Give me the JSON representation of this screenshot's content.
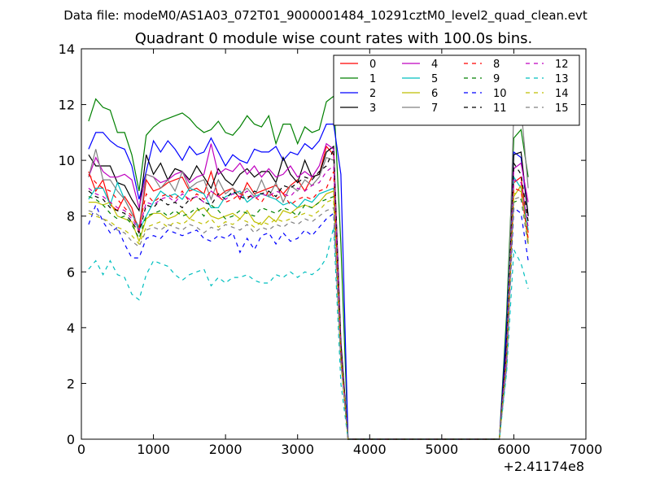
{
  "suptitle": "Data file: modeM0/AS1A03_072T01_9000001484_10291cztM0_level2_quad_clean.evt",
  "chart_data": {
    "type": "line",
    "title": "Quadrant 0 module wise count rates with 100.0s bins.",
    "xlabel": "",
    "ylabel": "",
    "x_offset_label": "+2.41174e8",
    "xlim": [
      0,
      7000
    ],
    "ylim": [
      0,
      14
    ],
    "xticks": [
      0,
      1000,
      2000,
      3000,
      4000,
      5000,
      6000,
      7000
    ],
    "yticks": [
      0,
      2,
      4,
      6,
      8,
      10,
      12,
      14
    ],
    "grid": false,
    "legend_position": "top-right",
    "legend_columns": 4,
    "x": [
      100,
      200,
      300,
      400,
      500,
      600,
      700,
      800,
      900,
      1000,
      1100,
      1200,
      1300,
      1400,
      1500,
      1600,
      1700,
      1800,
      1900,
      2000,
      2100,
      2200,
      2300,
      2400,
      2500,
      2600,
      2700,
      2800,
      2900,
      3000,
      3100,
      3200,
      3300,
      3400,
      3500,
      3600,
      3700,
      3800,
      3900,
      4000,
      4100,
      4200,
      4300,
      4400,
      4500,
      4600,
      4700,
      4800,
      4900,
      5000,
      5100,
      5200,
      5300,
      5400,
      5500,
      5600,
      5700,
      5800,
      5900,
      6000,
      6100,
      6200
    ],
    "series": [
      {
        "name": "0",
        "color": "#ff0000",
        "style": "solid",
        "values": [
          9.6,
          8.9,
          9.3,
          8.4,
          8.2,
          8.7,
          8.3,
          7.4,
          9.3,
          8.9,
          9.0,
          9.2,
          9.3,
          9.4,
          8.9,
          9.0,
          8.8,
          9.6,
          8.7,
          8.9,
          9.0,
          8.6,
          9.2,
          8.8,
          8.9,
          9.0,
          9.1,
          8.8,
          9.1,
          9.3,
          8.9,
          9.4,
          9.5,
          10.5,
          10.2,
          3.0,
          0,
          0,
          0,
          0,
          0,
          0,
          0,
          0,
          0,
          0,
          0,
          0,
          0,
          0,
          0,
          0,
          0,
          0,
          0,
          0,
          0,
          0,
          3.0,
          9.2,
          9.4,
          7.4
        ]
      },
      {
        "name": "1",
        "color": "#008000",
        "style": "solid",
        "values": [
          11.4,
          12.2,
          11.9,
          11.8,
          11.0,
          11.0,
          10.2,
          8.9,
          10.9,
          11.2,
          11.4,
          11.5,
          11.6,
          11.7,
          11.5,
          11.2,
          11.0,
          11.1,
          11.4,
          11.0,
          10.9,
          11.2,
          11.6,
          11.3,
          11.2,
          11.6,
          10.6,
          11.3,
          11.3,
          10.6,
          11.2,
          11.0,
          11.1,
          12.1,
          12.3,
          7.0,
          0,
          0,
          0,
          0,
          0,
          0,
          0,
          0,
          0,
          0,
          0,
          0,
          0,
          0,
          0,
          0,
          0,
          0,
          0,
          0,
          0,
          0,
          4.5,
          10.8,
          11.1,
          9.4
        ]
      },
      {
        "name": "2",
        "color": "#0000ff",
        "style": "solid",
        "values": [
          10.4,
          11.0,
          11.0,
          10.7,
          10.5,
          10.4,
          9.8,
          8.6,
          9.6,
          10.7,
          10.3,
          10.7,
          10.4,
          10.0,
          10.5,
          10.2,
          10.3,
          10.8,
          10.3,
          9.8,
          10.2,
          10.0,
          9.9,
          10.4,
          10.3,
          10.3,
          10.5,
          10.0,
          10.3,
          10.2,
          10.6,
          10.4,
          10.7,
          11.3,
          11.3,
          9.5,
          0,
          0,
          0,
          0,
          0,
          0,
          0,
          0,
          0,
          0,
          0,
          0,
          0,
          0,
          0,
          0,
          0,
          0,
          0,
          0,
          0,
          0,
          4.0,
          10.3,
          10.1,
          8.0
        ]
      },
      {
        "name": "3",
        "color": "#000000",
        "style": "solid",
        "values": [
          10.2,
          9.8,
          9.8,
          9.8,
          9.2,
          9.1,
          8.6,
          8.2,
          10.2,
          9.5,
          9.9,
          9.3,
          9.7,
          9.6,
          9.3,
          9.8,
          9.4,
          9.0,
          9.7,
          9.3,
          9.1,
          9.5,
          9.7,
          9.4,
          9.6,
          9.6,
          9.2,
          10.1,
          9.5,
          9.2,
          10.0,
          9.4,
          9.5,
          10.3,
          10.5,
          3.5,
          0,
          0,
          0,
          0,
          0,
          0,
          0,
          0,
          0,
          0,
          0,
          0,
          0,
          0,
          0,
          0,
          0,
          0,
          0,
          0,
          0,
          0,
          3.5,
          10.2,
          10.3,
          8.0
        ]
      },
      {
        "name": "4",
        "color": "#bf00bf",
        "style": "solid",
        "values": [
          9.4,
          10.1,
          9.6,
          9.4,
          9.4,
          9.5,
          9.3,
          8.3,
          9.5,
          9.4,
          9.2,
          9.3,
          9.5,
          9.6,
          9.2,
          9.4,
          9.5,
          10.6,
          9.5,
          9.7,
          9.6,
          9.9,
          9.5,
          9.8,
          9.4,
          9.7,
          9.4,
          9.5,
          9.8,
          9.4,
          9.6,
          9.4,
          9.8,
          10.6,
          10.4,
          3.2,
          0,
          0,
          0,
          0,
          0,
          0,
          0,
          0,
          0,
          0,
          0,
          0,
          0,
          0,
          0,
          0,
          0,
          0,
          0,
          0,
          0,
          0,
          3.2,
          9.7,
          9.9,
          8.5
        ]
      },
      {
        "name": "5",
        "color": "#00bfbf",
        "style": "solid",
        "values": [
          8.6,
          9.0,
          9.0,
          8.4,
          9.2,
          8.6,
          8.1,
          7.5,
          8.0,
          8.5,
          8.9,
          8.7,
          8.8,
          8.6,
          9.0,
          8.9,
          8.8,
          8.3,
          8.3,
          8.7,
          8.8,
          8.9,
          8.5,
          8.7,
          8.8,
          8.7,
          8.6,
          8.4,
          8.5,
          8.3,
          8.6,
          8.5,
          8.8,
          8.9,
          9.0,
          3.0,
          0,
          0,
          0,
          0,
          0,
          0,
          0,
          0,
          0,
          0,
          0,
          0,
          0,
          0,
          0,
          0,
          0,
          0,
          0,
          0,
          0,
          0,
          3.0,
          9.4,
          9.0,
          7.5
        ]
      },
      {
        "name": "6",
        "color": "#bfbf00",
        "style": "solid",
        "values": [
          8.5,
          8.5,
          8.4,
          8.5,
          8.0,
          7.9,
          7.8,
          7.1,
          7.9,
          8.1,
          8.1,
          7.9,
          8.0,
          8.2,
          7.9,
          8.2,
          8.3,
          8.0,
          7.9,
          8.0,
          8.1,
          7.9,
          8.2,
          7.8,
          7.7,
          8.0,
          7.8,
          8.2,
          8.1,
          8.3,
          8.4,
          8.3,
          8.5,
          8.8,
          8.9,
          2.8,
          0,
          0,
          0,
          0,
          0,
          0,
          0,
          0,
          0,
          0,
          0,
          0,
          0,
          0,
          0,
          0,
          0,
          0,
          0,
          0,
          0,
          0,
          2.8,
          8.7,
          9.1,
          7.0
        ]
      },
      {
        "name": "7",
        "color": "#808080",
        "style": "solid",
        "values": [
          9.4,
          10.4,
          9.3,
          9.3,
          8.9,
          8.6,
          8.1,
          7.6,
          9.5,
          9.4,
          9.0,
          9.3,
          8.9,
          9.6,
          9.0,
          9.2,
          9.3,
          8.6,
          9.3,
          8.8,
          9.0,
          8.8,
          9.0,
          8.7,
          9.3,
          8.7,
          9.2,
          8.5,
          9.1,
          8.9,
          9.3,
          9.1,
          9.4,
          10.1,
          10.0,
          3.0,
          0,
          0,
          0,
          0,
          0,
          0,
          0,
          0,
          0,
          0,
          0,
          0,
          0,
          0,
          0,
          0,
          0,
          0,
          0,
          0,
          0,
          0,
          3.0,
          11.8,
          11.9,
          9.0
        ]
      },
      {
        "name": "8",
        "color": "#ff0000",
        "style": "dashed",
        "values": [
          9.5,
          9.2,
          9.0,
          8.9,
          8.6,
          8.3,
          8.0,
          7.6,
          8.8,
          8.5,
          8.7,
          8.8,
          8.6,
          8.9,
          8.5,
          8.8,
          8.6,
          8.9,
          8.7,
          8.5,
          8.6,
          8.8,
          8.7,
          8.7,
          8.5,
          8.9,
          8.6,
          8.8,
          8.4,
          8.6,
          8.7,
          8.6,
          8.9,
          9.0,
          9.6,
          3.0,
          0,
          0,
          0,
          0,
          0,
          0,
          0,
          0,
          0,
          0,
          0,
          0,
          0,
          0,
          0,
          0,
          0,
          0,
          0,
          0,
          0,
          0,
          3.0,
          9.0,
          8.9,
          7.2
        ]
      },
      {
        "name": "9",
        "color": "#008000",
        "style": "dashed",
        "values": [
          8.7,
          8.6,
          8.4,
          8.1,
          7.9,
          8.0,
          7.7,
          7.2,
          8.0,
          8.1,
          8.2,
          8.0,
          8.2,
          8.0,
          8.1,
          8.3,
          8.0,
          8.4,
          8.2,
          7.9,
          8.0,
          8.2,
          8.1,
          8.0,
          8.3,
          8.2,
          8.1,
          8.3,
          8.2,
          8.0,
          8.4,
          8.3,
          8.5,
          8.6,
          8.7,
          2.9,
          0,
          0,
          0,
          0,
          0,
          0,
          0,
          0,
          0,
          0,
          0,
          0,
          0,
          0,
          0,
          0,
          0,
          0,
          0,
          0,
          0,
          0,
          2.9,
          8.5,
          8.6,
          7.0
        ]
      },
      {
        "name": "10",
        "color": "#0000ff",
        "style": "dashed",
        "values": [
          7.7,
          8.4,
          7.8,
          7.4,
          7.6,
          7.0,
          6.5,
          6.5,
          7.2,
          7.3,
          7.2,
          7.5,
          7.4,
          7.3,
          7.4,
          7.5,
          7.2,
          7.1,
          7.3,
          7.2,
          7.4,
          6.7,
          7.2,
          6.8,
          7.3,
          7.4,
          7.0,
          7.4,
          7.1,
          7.2,
          7.5,
          7.3,
          7.6,
          7.9,
          8.1,
          2.8,
          0,
          0,
          0,
          0,
          0,
          0,
          0,
          0,
          0,
          0,
          0,
          0,
          0,
          0,
          0,
          0,
          0,
          0,
          0,
          0,
          0,
          0,
          2.6,
          8.3,
          8.1,
          6.4
        ]
      },
      {
        "name": "11",
        "color": "#000000",
        "style": "dashed",
        "values": [
          8.9,
          8.7,
          8.6,
          8.3,
          8.2,
          8.1,
          7.8,
          7.4,
          8.4,
          8.3,
          8.6,
          8.4,
          8.5,
          8.3,
          8.6,
          8.7,
          8.5,
          8.4,
          8.8,
          8.6,
          8.9,
          8.7,
          8.6,
          8.9,
          8.8,
          8.9,
          8.7,
          9.1,
          9.0,
          9.2,
          9.4,
          9.3,
          9.6,
          9.8,
          10.4,
          3.4,
          0,
          0,
          0,
          0,
          0,
          0,
          0,
          0,
          0,
          0,
          0,
          0,
          0,
          0,
          0,
          0,
          0,
          0,
          0,
          0,
          0,
          0,
          3.4,
          9.9,
          9.5,
          7.8
        ]
      },
      {
        "name": "12",
        "color": "#bf00bf",
        "style": "dashed",
        "values": [
          9.0,
          8.8,
          8.7,
          8.5,
          8.3,
          8.2,
          7.9,
          7.5,
          8.5,
          8.4,
          8.6,
          8.7,
          8.5,
          8.8,
          8.6,
          8.7,
          8.5,
          8.9,
          8.7,
          8.6,
          8.8,
          8.7,
          8.9,
          8.6,
          8.8,
          8.7,
          8.9,
          8.8,
          8.7,
          9.0,
          8.9,
          9.1,
          9.2,
          9.6,
          9.8,
          3.1,
          0,
          0,
          0,
          0,
          0,
          0,
          0,
          0,
          0,
          0,
          0,
          0,
          0,
          0,
          0,
          0,
          0,
          0,
          0,
          0,
          0,
          0,
          3.1,
          9.3,
          9.2,
          7.6
        ]
      },
      {
        "name": "13",
        "color": "#00bfbf",
        "style": "dashed",
        "values": [
          6.1,
          6.4,
          5.9,
          6.4,
          5.9,
          5.8,
          5.2,
          5.0,
          5.9,
          6.4,
          6.3,
          6.2,
          5.9,
          5.7,
          5.9,
          6.0,
          6.1,
          5.5,
          5.8,
          5.6,
          5.8,
          5.8,
          5.9,
          5.7,
          5.6,
          5.6,
          5.9,
          5.8,
          6.0,
          5.8,
          6.0,
          5.9,
          6.1,
          6.5,
          7.6,
          2.0,
          0,
          0,
          0,
          0,
          0,
          0,
          0,
          0,
          0,
          0,
          0,
          0,
          0,
          0,
          0,
          0,
          0,
          0,
          0,
          0,
          0,
          0,
          2.4,
          6.8,
          6.3,
          5.4
        ]
      },
      {
        "name": "14",
        "color": "#bfbf00",
        "style": "dashed",
        "values": [
          8.1,
          8.0,
          7.9,
          7.8,
          7.6,
          7.5,
          7.3,
          7.0,
          7.6,
          7.7,
          7.8,
          7.6,
          7.8,
          7.7,
          7.9,
          7.8,
          7.7,
          7.9,
          7.6,
          7.8,
          7.7,
          7.9,
          7.8,
          7.6,
          7.8,
          7.7,
          7.9,
          7.8,
          7.9,
          8.0,
          8.1,
          8.0,
          8.2,
          8.5,
          8.6,
          2.9,
          0,
          0,
          0,
          0,
          0,
          0,
          0,
          0,
          0,
          0,
          0,
          0,
          0,
          0,
          0,
          0,
          0,
          0,
          0,
          0,
          0,
          0,
          2.8,
          8.8,
          8.9,
          7.1
        ]
      },
      {
        "name": "15",
        "color": "#808080",
        "style": "dashed",
        "values": [
          8.2,
          8.1,
          7.9,
          7.7,
          7.5,
          7.4,
          7.1,
          6.9,
          7.5,
          7.6,
          7.5,
          7.7,
          7.6,
          7.5,
          7.7,
          7.6,
          7.4,
          7.6,
          7.5,
          7.7,
          7.6,
          7.5,
          7.7,
          7.4,
          7.6,
          7.5,
          7.7,
          7.6,
          7.8,
          7.7,
          7.9,
          7.8,
          8.0,
          8.2,
          8.3,
          2.7,
          0,
          0,
          0,
          0,
          0,
          0,
          0,
          0,
          0,
          0,
          0,
          0,
          0,
          0,
          0,
          0,
          0,
          0,
          0,
          0,
          0,
          0,
          2.7,
          8.6,
          8.7,
          6.9
        ]
      }
    ]
  }
}
